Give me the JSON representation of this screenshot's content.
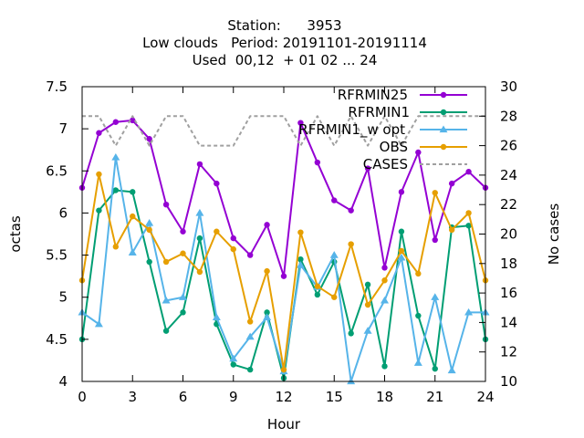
{
  "chart_data": {
    "type": "line",
    "title_lines": [
      "Station:      3953",
      "Low clouds   Period: 20191101-20191114",
      "Used  00,12  + 01 02 ... 24"
    ],
    "xlabel": "Hour",
    "ylabel": "octas",
    "y2label": "No cases",
    "xlim": [
      0,
      24
    ],
    "ylim": [
      4,
      7.5
    ],
    "y2lim": [
      10,
      30
    ],
    "x_ticks": [
      0,
      3,
      6,
      9,
      12,
      15,
      18,
      21,
      24
    ],
    "y_ticks": [
      4,
      4.5,
      5,
      5.5,
      6,
      6.5,
      7,
      7.5
    ],
    "y_tick_labels": [
      "4",
      "4.5",
      "5",
      "5.5",
      "6",
      "6.5",
      "7",
      "7.5"
    ],
    "y2_ticks": [
      10,
      12,
      14,
      16,
      18,
      20,
      22,
      24,
      26,
      28,
      30
    ],
    "grid": false,
    "legend_position": "top-right",
    "x": [
      0,
      1,
      2,
      3,
      4,
      5,
      6,
      7,
      8,
      9,
      10,
      11,
      12,
      13,
      14,
      15,
      16,
      17,
      18,
      19,
      20,
      21,
      22,
      23,
      24
    ],
    "series": [
      {
        "name": "RFRMIN25",
        "color": "#9400d3",
        "marker": "circle",
        "axis": "y",
        "values": [
          6.3,
          6.95,
          7.08,
          7.1,
          6.88,
          6.1,
          5.78,
          6.58,
          6.35,
          5.7,
          5.5,
          5.86,
          5.25,
          7.07,
          6.6,
          6.15,
          6.03,
          6.53,
          5.35,
          6.25,
          6.72,
          5.68,
          6.35,
          6.49,
          6.3
        ]
      },
      {
        "name": "RFRMIN1",
        "color": "#009e73",
        "marker": "circle",
        "axis": "y",
        "values": [
          4.5,
          6.03,
          6.27,
          6.25,
          5.42,
          4.6,
          4.82,
          5.7,
          4.68,
          4.2,
          4.14,
          4.82,
          4.04,
          5.45,
          5.03,
          5.42,
          4.57,
          5.15,
          4.18,
          5.78,
          4.78,
          4.15,
          5.83,
          5.85,
          4.5
        ]
      },
      {
        "name": "RFRMIN1_w_opt",
        "color": "#56b4e9",
        "marker": "triangle",
        "axis": "y",
        "values": [
          4.82,
          4.68,
          6.66,
          5.53,
          5.88,
          4.96,
          5.0,
          6.0,
          4.76,
          4.27,
          4.53,
          4.76,
          4.12,
          5.38,
          5.12,
          5.5,
          4.0,
          4.6,
          4.96,
          5.47,
          4.22,
          5.0,
          4.13,
          4.82,
          4.82
        ]
      },
      {
        "name": "OBS",
        "color": "#e69f00",
        "marker": "circle",
        "axis": "y",
        "values": [
          5.2,
          6.46,
          5.6,
          5.96,
          5.8,
          5.42,
          5.52,
          5.3,
          5.78,
          5.57,
          4.71,
          5.31,
          4.14,
          5.77,
          5.13,
          5.0,
          5.63,
          4.91,
          5.2,
          5.55,
          5.28,
          6.24,
          5.8,
          6.0,
          5.2
        ]
      },
      {
        "name": "CASES",
        "color": "#a0a0a0",
        "marker": "none",
        "dashed": true,
        "axis": "y2",
        "values": [
          28,
          28,
          26,
          28,
          26,
          28,
          28,
          26,
          26,
          26,
          28,
          28,
          28,
          26,
          28,
          26,
          28,
          26,
          28,
          26,
          28,
          28,
          28,
          28,
          28
        ]
      }
    ]
  }
}
